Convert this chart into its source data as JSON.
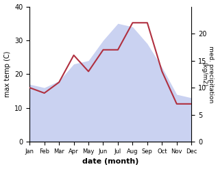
{
  "months": [
    "Jan",
    "Feb",
    "Mar",
    "Apr",
    "May",
    "Jun",
    "Jul",
    "Aug",
    "Sep",
    "Oct",
    "Nov",
    "Dec"
  ],
  "temp": [
    17,
    16,
    18,
    23,
    24,
    30,
    35,
    34,
    29,
    22,
    14,
    13
  ],
  "precip": [
    10,
    9,
    11,
    16,
    13,
    17,
    17,
    22,
    22,
    13,
    7,
    7
  ],
  "temp_fill_color": "#c5cdf0",
  "precip_color": "#b03040",
  "ylabel_left": "max temp (C)",
  "ylabel_right": "med. precipitation\n(kg/m2)",
  "xlabel": "date (month)",
  "ylim_left": [
    0,
    40
  ],
  "ylim_right": [
    0,
    25
  ],
  "yticks_left": [
    0,
    10,
    20,
    30,
    40
  ],
  "yticks_right": [
    0,
    5,
    10,
    15,
    20
  ],
  "bg_color": "#ffffff"
}
